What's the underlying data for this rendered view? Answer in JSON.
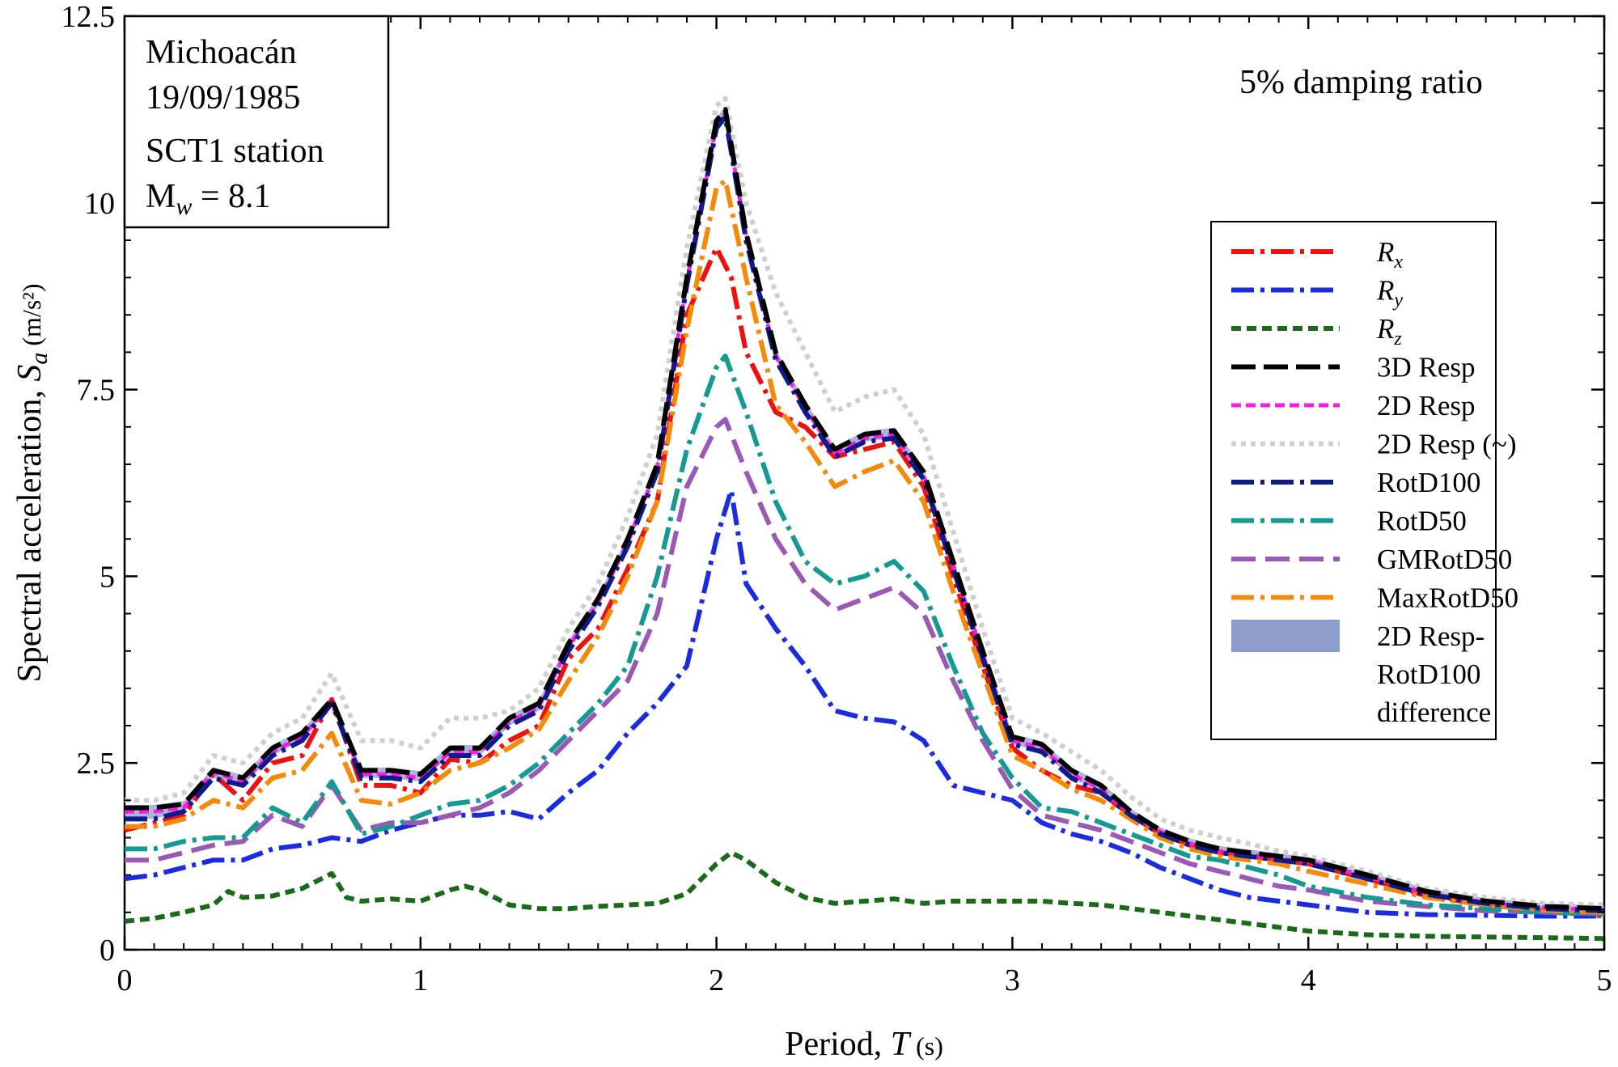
{
  "chart_data": {
    "type": "line",
    "title": "",
    "xlabel": {
      "main": "Period, ",
      "var": "T",
      "unit": " (s)"
    },
    "ylabel": {
      "main": "Spectral acceleration, ",
      "var": "S",
      "sub": "a",
      "unit": " (m/s²)"
    },
    "xlim": [
      0,
      5
    ],
    "ylim": [
      0,
      12.5
    ],
    "xticks": [
      0,
      1,
      2,
      3,
      4,
      5
    ],
    "xtick_labels": [
      "0",
      "1",
      "2",
      "3",
      "4",
      "5"
    ],
    "yticks": [
      0,
      2.5,
      5,
      7.5,
      10,
      12.5
    ],
    "ytick_labels": [
      "0",
      "2.5",
      "5",
      "7.5",
      "10",
      "12.5"
    ],
    "grid": false,
    "legend_position": "right",
    "annotations": {
      "event": [
        "Michoacán",
        "19/09/1985",
        "SCT1 station"
      ],
      "magnitude": {
        "base": "M",
        "sub": "w",
        "rest": " = 8.1"
      },
      "damping": "5% damping ratio"
    },
    "series": [
      {
        "name": "R",
        "name_sub": "x",
        "color": "#ee1111",
        "dash": "28 8 5 8",
        "width": 6,
        "x": [
          0,
          0.1,
          0.2,
          0.3,
          0.4,
          0.5,
          0.6,
          0.7,
          0.8,
          0.9,
          1.0,
          1.1,
          1.2,
          1.3,
          1.4,
          1.5,
          1.6,
          1.7,
          1.8,
          1.9,
          2.0,
          2.05,
          2.1,
          2.2,
          2.3,
          2.4,
          2.5,
          2.6,
          2.7,
          2.8,
          2.9,
          3.0,
          3.1,
          3.2,
          3.3,
          3.4,
          3.5,
          3.6,
          3.7,
          3.8,
          3.9,
          4.0,
          4.2,
          4.4,
          4.6,
          4.8,
          5.0
        ],
        "y": [
          1.6,
          1.7,
          1.8,
          2.35,
          2.0,
          2.5,
          2.6,
          3.35,
          2.2,
          2.2,
          2.1,
          2.55,
          2.5,
          2.8,
          3.0,
          3.9,
          4.3,
          5.1,
          6.0,
          8.5,
          9.4,
          9.0,
          8.0,
          7.2,
          7.0,
          6.6,
          6.7,
          6.8,
          6.2,
          5.0,
          3.8,
          2.7,
          2.4,
          2.2,
          2.1,
          1.8,
          1.55,
          1.4,
          1.3,
          1.25,
          1.2,
          1.15,
          0.95,
          0.72,
          0.6,
          0.52,
          0.45
        ]
      },
      {
        "name": "R",
        "name_sub": "y",
        "color": "#1a2be0",
        "dash": "28 8 5 8",
        "width": 6,
        "x": [
          0,
          0.1,
          0.2,
          0.3,
          0.4,
          0.5,
          0.6,
          0.7,
          0.8,
          0.9,
          1.0,
          1.1,
          1.2,
          1.3,
          1.4,
          1.5,
          1.6,
          1.7,
          1.8,
          1.9,
          2.0,
          2.05,
          2.1,
          2.2,
          2.3,
          2.4,
          2.5,
          2.6,
          2.7,
          2.8,
          2.9,
          3.0,
          3.1,
          3.2,
          3.3,
          3.4,
          3.5,
          3.6,
          3.7,
          3.8,
          3.9,
          4.0,
          4.2,
          4.4,
          4.6,
          4.8,
          5.0
        ],
        "y": [
          0.95,
          1.0,
          1.1,
          1.2,
          1.2,
          1.35,
          1.4,
          1.5,
          1.45,
          1.6,
          1.7,
          1.8,
          1.8,
          1.85,
          1.75,
          2.1,
          2.4,
          2.9,
          3.3,
          3.8,
          5.5,
          6.15,
          4.9,
          4.3,
          3.8,
          3.2,
          3.1,
          3.05,
          2.8,
          2.2,
          2.1,
          2.0,
          1.7,
          1.55,
          1.45,
          1.3,
          1.1,
          0.95,
          0.8,
          0.7,
          0.65,
          0.6,
          0.5,
          0.47,
          0.46,
          0.45,
          0.45
        ]
      },
      {
        "name": "R",
        "name_sub": "z",
        "color": "#1a6a1a",
        "dash": "12 7",
        "width": 6,
        "x": [
          0,
          0.1,
          0.2,
          0.3,
          0.35,
          0.4,
          0.5,
          0.6,
          0.7,
          0.75,
          0.8,
          0.9,
          1.0,
          1.1,
          1.15,
          1.2,
          1.3,
          1.4,
          1.5,
          1.6,
          1.7,
          1.8,
          1.9,
          2.0,
          2.05,
          2.1,
          2.2,
          2.3,
          2.4,
          2.5,
          2.6,
          2.7,
          2.8,
          2.9,
          3.0,
          3.1,
          3.2,
          3.3,
          3.4,
          3.5,
          3.6,
          3.7,
          3.8,
          3.9,
          4.0,
          4.2,
          4.4,
          4.6,
          4.8,
          5.0
        ],
        "y": [
          0.38,
          0.42,
          0.5,
          0.6,
          0.78,
          0.7,
          0.72,
          0.82,
          1.02,
          0.7,
          0.65,
          0.68,
          0.65,
          0.8,
          0.85,
          0.8,
          0.6,
          0.55,
          0.55,
          0.58,
          0.6,
          0.62,
          0.75,
          1.15,
          1.3,
          1.2,
          0.9,
          0.7,
          0.62,
          0.65,
          0.68,
          0.62,
          0.65,
          0.65,
          0.65,
          0.65,
          0.62,
          0.6,
          0.55,
          0.5,
          0.45,
          0.4,
          0.35,
          0.3,
          0.25,
          0.2,
          0.18,
          0.17,
          0.16,
          0.15
        ]
      },
      {
        "name": "3D Resp",
        "color": "#000000",
        "dash": "30 10",
        "width": 6,
        "x": [
          0,
          0.1,
          0.2,
          0.3,
          0.4,
          0.5,
          0.6,
          0.7,
          0.8,
          0.9,
          1.0,
          1.1,
          1.2,
          1.3,
          1.4,
          1.5,
          1.6,
          1.7,
          1.8,
          1.9,
          2.0,
          2.03,
          2.1,
          2.2,
          2.3,
          2.4,
          2.5,
          2.6,
          2.7,
          2.8,
          2.9,
          3.0,
          3.1,
          3.2,
          3.3,
          3.4,
          3.5,
          3.6,
          3.7,
          3.8,
          3.9,
          4.0,
          4.2,
          4.4,
          4.6,
          4.8,
          5.0
        ],
        "y": [
          1.9,
          1.9,
          1.95,
          2.4,
          2.3,
          2.7,
          2.9,
          3.35,
          2.4,
          2.4,
          2.35,
          2.7,
          2.7,
          3.1,
          3.3,
          4.1,
          4.7,
          5.5,
          6.5,
          9.0,
          11.1,
          11.25,
          9.6,
          8.0,
          7.3,
          6.7,
          6.9,
          6.95,
          6.4,
          5.2,
          4.0,
          2.85,
          2.75,
          2.4,
          2.2,
          1.85,
          1.6,
          1.45,
          1.35,
          1.3,
          1.25,
          1.2,
          1.0,
          0.78,
          0.65,
          0.58,
          0.55
        ]
      },
      {
        "name": "2D Resp",
        "color": "#ff1ae8",
        "dash": "12 6",
        "width": 5,
        "x": [
          0,
          0.1,
          0.2,
          0.3,
          0.4,
          0.5,
          0.6,
          0.7,
          0.8,
          0.9,
          1.0,
          1.1,
          1.2,
          1.3,
          1.4,
          1.5,
          1.6,
          1.7,
          1.8,
          1.9,
          2.0,
          2.03,
          2.1,
          2.2,
          2.3,
          2.4,
          2.5,
          2.6,
          2.7,
          2.8,
          2.9,
          3.0,
          3.1,
          3.2,
          3.3,
          3.4,
          3.5,
          3.6,
          3.7,
          3.8,
          3.9,
          4.0,
          4.2,
          4.4,
          4.6,
          4.8,
          5.0
        ],
        "y": [
          1.85,
          1.85,
          1.9,
          2.38,
          2.25,
          2.65,
          2.85,
          3.3,
          2.35,
          2.35,
          2.3,
          2.65,
          2.65,
          3.05,
          3.25,
          4.05,
          4.65,
          5.45,
          6.45,
          8.95,
          11.05,
          11.2,
          9.55,
          7.95,
          7.25,
          6.65,
          6.85,
          6.9,
          6.35,
          5.15,
          3.95,
          2.8,
          2.7,
          2.35,
          2.15,
          1.82,
          1.58,
          1.42,
          1.32,
          1.28,
          1.22,
          1.18,
          0.98,
          0.76,
          0.63,
          0.56,
          0.53
        ]
      },
      {
        "name": "2D Resp (~)",
        "color": "#cfcfcf",
        "dash": "6 6",
        "width": 6,
        "x": [
          0,
          0.1,
          0.2,
          0.3,
          0.4,
          0.5,
          0.6,
          0.7,
          0.8,
          0.9,
          1.0,
          1.1,
          1.2,
          1.3,
          1.4,
          1.5,
          1.6,
          1.7,
          1.8,
          1.9,
          2.0,
          2.03,
          2.1,
          2.2,
          2.3,
          2.4,
          2.5,
          2.6,
          2.7,
          2.8,
          2.9,
          3.0,
          3.1,
          3.2,
          3.3,
          3.4,
          3.5,
          3.6,
          3.7,
          3.8,
          3.9,
          4.0,
          4.2,
          4.4,
          4.6,
          4.8,
          5.0
        ],
        "y": [
          2.0,
          2.0,
          2.1,
          2.6,
          2.5,
          2.9,
          3.1,
          3.7,
          2.8,
          2.8,
          2.7,
          3.1,
          3.1,
          3.2,
          3.5,
          4.3,
          4.9,
          5.8,
          6.9,
          9.4,
          11.3,
          11.4,
          10.0,
          8.8,
          8.0,
          7.2,
          7.4,
          7.5,
          6.9,
          5.6,
          4.3,
          3.1,
          2.9,
          2.65,
          2.4,
          2.05,
          1.75,
          1.6,
          1.5,
          1.42,
          1.32,
          1.25,
          1.05,
          0.82,
          0.7,
          0.62,
          0.6
        ]
      },
      {
        "name": "RotD100",
        "color": "#0d1b8c",
        "dash": "28 8 5 8",
        "width": 6,
        "x": [
          0,
          0.1,
          0.2,
          0.3,
          0.4,
          0.5,
          0.6,
          0.7,
          0.8,
          0.9,
          1.0,
          1.1,
          1.2,
          1.3,
          1.4,
          1.5,
          1.6,
          1.7,
          1.8,
          1.9,
          2.0,
          2.03,
          2.1,
          2.2,
          2.3,
          2.4,
          2.5,
          2.6,
          2.7,
          2.8,
          2.9,
          3.0,
          3.1,
          3.2,
          3.3,
          3.4,
          3.5,
          3.6,
          3.7,
          3.8,
          3.9,
          4.0,
          4.2,
          4.4,
          4.6,
          4.8,
          5.0
        ],
        "y": [
          1.75,
          1.75,
          1.85,
          2.3,
          2.2,
          2.6,
          2.8,
          3.3,
          2.3,
          2.3,
          2.25,
          2.6,
          2.6,
          3.0,
          3.2,
          4.0,
          4.6,
          5.4,
          6.4,
          8.9,
          11.0,
          11.15,
          9.5,
          7.9,
          7.2,
          6.6,
          6.8,
          6.85,
          6.3,
          5.1,
          3.9,
          2.75,
          2.65,
          2.3,
          2.1,
          1.8,
          1.55,
          1.4,
          1.3,
          1.25,
          1.2,
          1.15,
          0.95,
          0.74,
          0.62,
          0.55,
          0.52
        ]
      },
      {
        "name": "RotD50",
        "color": "#159a93",
        "dash": "28 8 5 8",
        "width": 6,
        "x": [
          0,
          0.1,
          0.2,
          0.3,
          0.4,
          0.5,
          0.6,
          0.7,
          0.8,
          0.9,
          1.0,
          1.1,
          1.2,
          1.3,
          1.4,
          1.5,
          1.6,
          1.7,
          1.8,
          1.9,
          2.0,
          2.03,
          2.1,
          2.2,
          2.3,
          2.4,
          2.5,
          2.6,
          2.7,
          2.8,
          2.9,
          3.0,
          3.1,
          3.2,
          3.3,
          3.4,
          3.5,
          3.6,
          3.7,
          3.8,
          3.9,
          4.0,
          4.2,
          4.4,
          4.6,
          4.8,
          5.0
        ],
        "y": [
          1.35,
          1.35,
          1.45,
          1.5,
          1.5,
          1.9,
          1.7,
          2.25,
          1.55,
          1.65,
          1.8,
          1.95,
          2.0,
          2.2,
          2.5,
          2.9,
          3.3,
          3.8,
          5.0,
          6.7,
          7.8,
          7.95,
          7.2,
          6.0,
          5.2,
          4.9,
          5.0,
          5.2,
          4.8,
          3.8,
          2.9,
          2.3,
          1.9,
          1.85,
          1.7,
          1.55,
          1.4,
          1.25,
          1.2,
          1.1,
          1.0,
          0.85,
          0.7,
          0.6,
          0.55,
          0.5,
          0.48
        ]
      },
      {
        "name": "GMRotD50",
        "color": "#9b59b6",
        "dash": "30 12",
        "width": 6,
        "x": [
          0,
          0.1,
          0.2,
          0.3,
          0.4,
          0.5,
          0.6,
          0.7,
          0.8,
          0.9,
          1.0,
          1.1,
          1.2,
          1.3,
          1.4,
          1.5,
          1.6,
          1.7,
          1.8,
          1.9,
          2.0,
          2.03,
          2.1,
          2.2,
          2.3,
          2.4,
          2.5,
          2.6,
          2.7,
          2.8,
          2.9,
          3.0,
          3.1,
          3.2,
          3.3,
          3.4,
          3.5,
          3.6,
          3.7,
          3.8,
          3.9,
          4.0,
          4.2,
          4.4,
          4.6,
          4.8,
          5.0
        ],
        "y": [
          1.2,
          1.2,
          1.3,
          1.4,
          1.45,
          1.8,
          1.65,
          2.2,
          1.6,
          1.7,
          1.7,
          1.8,
          1.9,
          2.1,
          2.4,
          2.8,
          3.2,
          3.6,
          4.5,
          6.2,
          7.0,
          7.1,
          6.4,
          5.5,
          4.9,
          4.55,
          4.7,
          4.85,
          4.5,
          3.6,
          2.8,
          2.15,
          1.8,
          1.7,
          1.6,
          1.45,
          1.3,
          1.15,
          1.05,
          0.95,
          0.85,
          0.8,
          0.65,
          0.58,
          0.52,
          0.5,
          0.48
        ]
      },
      {
        "name": "MaxRotD50",
        "color": "#f58a0a",
        "dash": "28 8 5 8",
        "width": 6,
        "x": [
          0,
          0.1,
          0.2,
          0.3,
          0.4,
          0.5,
          0.6,
          0.7,
          0.8,
          0.9,
          1.0,
          1.1,
          1.2,
          1.3,
          1.4,
          1.5,
          1.6,
          1.7,
          1.8,
          1.9,
          2.0,
          2.03,
          2.1,
          2.2,
          2.3,
          2.4,
          2.5,
          2.6,
          2.7,
          2.8,
          2.9,
          3.0,
          3.1,
          3.2,
          3.3,
          3.4,
          3.5,
          3.6,
          3.7,
          3.8,
          3.9,
          4.0,
          4.2,
          4.4,
          4.6,
          4.8,
          5.0
        ],
        "y": [
          1.65,
          1.65,
          1.75,
          2.0,
          1.9,
          2.3,
          2.4,
          2.9,
          2.0,
          1.95,
          2.1,
          2.4,
          2.5,
          2.7,
          2.95,
          3.6,
          4.2,
          5.0,
          6.0,
          8.3,
          10.2,
          10.3,
          9.0,
          7.3,
          6.8,
          6.2,
          6.4,
          6.55,
          6.0,
          4.8,
          3.7,
          2.6,
          2.4,
          2.15,
          2.0,
          1.75,
          1.5,
          1.35,
          1.25,
          1.2,
          1.15,
          1.05,
          0.88,
          0.7,
          0.6,
          0.53,
          0.5
        ]
      }
    ],
    "band": {
      "name": "2D Resp-\nRotD100\ndifference",
      "color": "#8c9dcc",
      "upper": "3D Resp",
      "lower": "RotD100"
    }
  }
}
